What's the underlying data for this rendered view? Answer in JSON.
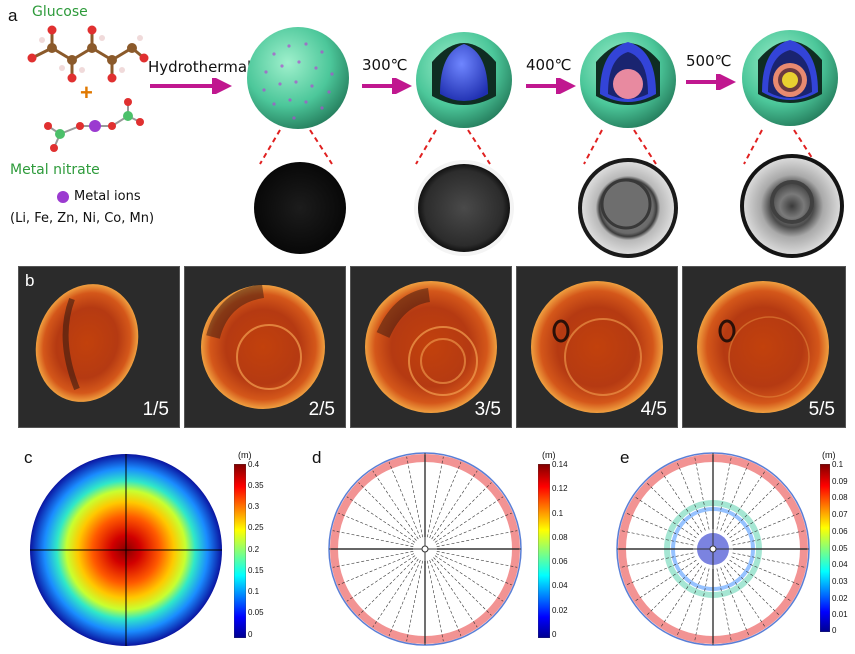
{
  "panel_a": {
    "letter": "a",
    "glucose_label": "Glucose",
    "plus": "+",
    "nitrate_label": "Metal nitrate",
    "ions_label": "Metal ions",
    "ions_list": "(Li, Fe, Zn, Ni, Co, Mn)",
    "hydrothermal_label": "Hydrothermal",
    "temps": [
      "300℃",
      "400℃",
      "500℃"
    ]
  },
  "panel_b": {
    "letter": "b",
    "fractions": [
      "1/5",
      "2/5",
      "3/5",
      "4/5",
      "5/5"
    ]
  },
  "panel_c": {
    "letter": "c",
    "unit": "(m)",
    "ticks": [
      "0.4",
      "0.35",
      "0.3",
      "0.25",
      "0.2",
      "0.15",
      "0.1",
      "0.05",
      "0"
    ]
  },
  "panel_d": {
    "letter": "d",
    "unit": "(m)",
    "ticks": [
      "0.14",
      "0.12",
      "0.1",
      "0.08",
      "0.06",
      "0.04",
      "0.02",
      "0"
    ]
  },
  "panel_e": {
    "letter": "e",
    "unit": "(m)",
    "ticks": [
      "0.1",
      "0.09",
      "0.08",
      "0.07",
      "0.06",
      "0.05",
      "0.04",
      "0.03",
      "0.02",
      "0.01",
      "0"
    ]
  },
  "colors": {
    "green": "#2e9b3b",
    "magenta_arrow": "#c0178f",
    "red_dash": "#e02020",
    "shell_green": "#5fd6a4",
    "core_blue": "#3b4fe0"
  }
}
